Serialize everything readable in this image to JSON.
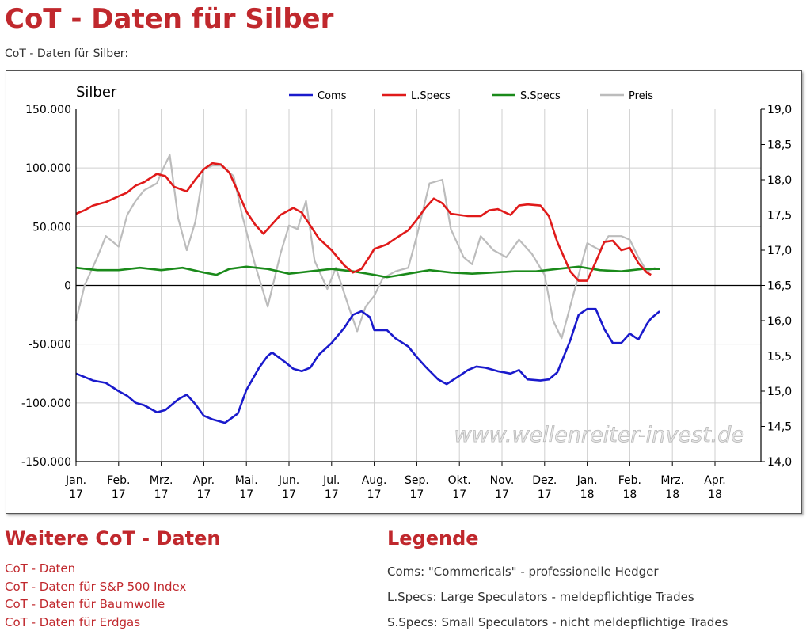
{
  "page": {
    "title": "CoT - Daten für Silber",
    "subtitle": "CoT - Daten für Silber:"
  },
  "chart_data": {
    "type": "line",
    "title": "Silber",
    "watermark": "www.wellenreiter-invest.de",
    "legend_position": "top",
    "x_labels": [
      [
        "Jan.",
        "17"
      ],
      [
        "Feb.",
        "17"
      ],
      [
        "Mrz.",
        "17"
      ],
      [
        "Apr.",
        "17"
      ],
      [
        "Mai.",
        "17"
      ],
      [
        "Jun.",
        "17"
      ],
      [
        "Jul.",
        "17"
      ],
      [
        "Aug.",
        "17"
      ],
      [
        "Sep.",
        "17"
      ],
      [
        "Okt.",
        "17"
      ],
      [
        "Nov.",
        "17"
      ],
      [
        "Dez.",
        "17"
      ],
      [
        "Jan.",
        "18"
      ],
      [
        "Feb.",
        "18"
      ],
      [
        "Mrz.",
        "18"
      ],
      [
        "Apr.",
        "18"
      ]
    ],
    "y_left": {
      "min": -150000,
      "max": 150000,
      "ticks": [
        150000,
        100000,
        50000,
        0,
        -50000,
        -100000,
        -150000
      ],
      "tick_labels": [
        "150.000",
        "100.000",
        "50.000",
        "0",
        "-50.000",
        "-100.000",
        "-150.000"
      ]
    },
    "y_right": {
      "min": 14.0,
      "max": 19.0,
      "ticks": [
        19.0,
        18.5,
        18.0,
        17.5,
        17.0,
        16.5,
        16.0,
        15.5,
        15.0,
        14.5,
        14.0
      ],
      "tick_labels": [
        "19,0",
        "18,5",
        "18,0",
        "17,5",
        "17,0",
        "16,5",
        "16,0",
        "15,5",
        "15,0",
        "14,5",
        "14,0"
      ]
    },
    "series": [
      {
        "name": "Coms",
        "color": "#1a1acc",
        "axis": "left",
        "points": [
          [
            0,
            -75000
          ],
          [
            0.2,
            -78000
          ],
          [
            0.4,
            -81000
          ],
          [
            0.7,
            -83000
          ],
          [
            1.0,
            -90000
          ],
          [
            1.2,
            -94000
          ],
          [
            1.4,
            -100000
          ],
          [
            1.6,
            -102000
          ],
          [
            1.9,
            -108000
          ],
          [
            2.1,
            -106000
          ],
          [
            2.4,
            -97000
          ],
          [
            2.6,
            -93000
          ],
          [
            2.8,
            -101000
          ],
          [
            3.0,
            -111000
          ],
          [
            3.2,
            -114000
          ],
          [
            3.5,
            -117000
          ],
          [
            3.8,
            -109000
          ],
          [
            4.0,
            -89000
          ],
          [
            4.3,
            -70000
          ],
          [
            4.5,
            -60000
          ],
          [
            4.6,
            -57000
          ],
          [
            4.9,
            -65000
          ],
          [
            5.1,
            -71000
          ],
          [
            5.3,
            -73000
          ],
          [
            5.5,
            -70000
          ],
          [
            5.7,
            -59000
          ],
          [
            6.0,
            -49000
          ],
          [
            6.3,
            -36000
          ],
          [
            6.5,
            -25000
          ],
          [
            6.7,
            -22000
          ],
          [
            6.9,
            -27000
          ],
          [
            7.0,
            -38000
          ],
          [
            7.3,
            -38000
          ],
          [
            7.5,
            -45000
          ],
          [
            7.8,
            -52000
          ],
          [
            8.0,
            -61000
          ],
          [
            8.2,
            -69000
          ],
          [
            8.5,
            -80000
          ],
          [
            8.7,
            -84000
          ],
          [
            9.0,
            -77000
          ],
          [
            9.2,
            -72000
          ],
          [
            9.4,
            -69000
          ],
          [
            9.6,
            -70000
          ],
          [
            9.9,
            -73000
          ],
          [
            10.2,
            -75000
          ],
          [
            10.4,
            -72000
          ],
          [
            10.6,
            -80000
          ],
          [
            10.9,
            -81000
          ],
          [
            11.1,
            -80000
          ],
          [
            11.3,
            -74000
          ],
          [
            11.6,
            -47000
          ],
          [
            11.8,
            -25000
          ],
          [
            12.0,
            -20000
          ],
          [
            12.2,
            -20000
          ],
          [
            12.4,
            -37000
          ],
          [
            12.6,
            -49000
          ],
          [
            12.8,
            -49000
          ],
          [
            13.0,
            -41000
          ],
          [
            13.2,
            -46000
          ],
          [
            13.4,
            -33000
          ],
          [
            13.5,
            -28000
          ],
          [
            13.7,
            -22000
          ]
        ]
      },
      {
        "name": "L.Specs",
        "color": "#e01a1a",
        "axis": "left",
        "points": [
          [
            0,
            61000
          ],
          [
            0.2,
            64000
          ],
          [
            0.4,
            68000
          ],
          [
            0.7,
            71000
          ],
          [
            1.0,
            76000
          ],
          [
            1.2,
            79000
          ],
          [
            1.4,
            85000
          ],
          [
            1.6,
            88000
          ],
          [
            1.9,
            95000
          ],
          [
            2.1,
            93000
          ],
          [
            2.3,
            84000
          ],
          [
            2.6,
            80000
          ],
          [
            2.8,
            90000
          ],
          [
            3.0,
            99000
          ],
          [
            3.2,
            104000
          ],
          [
            3.4,
            103000
          ],
          [
            3.6,
            96000
          ],
          [
            3.8,
            80000
          ],
          [
            4.0,
            63000
          ],
          [
            4.2,
            52000
          ],
          [
            4.4,
            44000
          ],
          [
            4.6,
            52000
          ],
          [
            4.8,
            60000
          ],
          [
            5.1,
            66000
          ],
          [
            5.3,
            62000
          ],
          [
            5.5,
            51000
          ],
          [
            5.7,
            40000
          ],
          [
            6.0,
            30000
          ],
          [
            6.3,
            17000
          ],
          [
            6.5,
            11000
          ],
          [
            6.7,
            14000
          ],
          [
            6.9,
            25000
          ],
          [
            7.0,
            31000
          ],
          [
            7.3,
            35000
          ],
          [
            7.5,
            40000
          ],
          [
            7.8,
            47000
          ],
          [
            8.0,
            56000
          ],
          [
            8.2,
            66000
          ],
          [
            8.4,
            74000
          ],
          [
            8.6,
            70000
          ],
          [
            8.8,
            61000
          ],
          [
            9.0,
            60000
          ],
          [
            9.2,
            59000
          ],
          [
            9.5,
            59000
          ],
          [
            9.7,
            64000
          ],
          [
            9.9,
            65000
          ],
          [
            10.2,
            60000
          ],
          [
            10.4,
            68000
          ],
          [
            10.6,
            69000
          ],
          [
            10.9,
            68000
          ],
          [
            11.1,
            59000
          ],
          [
            11.3,
            37000
          ],
          [
            11.6,
            12000
          ],
          [
            11.8,
            4000
          ],
          [
            12.0,
            4000
          ],
          [
            12.2,
            20000
          ],
          [
            12.4,
            37000
          ],
          [
            12.6,
            38000
          ],
          [
            12.8,
            30000
          ],
          [
            13.0,
            32000
          ],
          [
            13.2,
            19000
          ],
          [
            13.4,
            11000
          ],
          [
            13.5,
            9000
          ]
        ]
      },
      {
        "name": "S.Specs",
        "color": "#1a8a1a",
        "axis": "left",
        "points": [
          [
            0,
            15000
          ],
          [
            0.5,
            13000
          ],
          [
            1.0,
            13000
          ],
          [
            1.5,
            15000
          ],
          [
            2.0,
            13000
          ],
          [
            2.5,
            15000
          ],
          [
            3.0,
            11000
          ],
          [
            3.3,
            9000
          ],
          [
            3.6,
            14000
          ],
          [
            4.0,
            16000
          ],
          [
            4.5,
            14000
          ],
          [
            5.0,
            10000
          ],
          [
            5.5,
            12000
          ],
          [
            6.0,
            14000
          ],
          [
            6.5,
            12000
          ],
          [
            7.0,
            9000
          ],
          [
            7.3,
            7000
          ],
          [
            7.8,
            10000
          ],
          [
            8.3,
            13000
          ],
          [
            8.8,
            11000
          ],
          [
            9.3,
            10000
          ],
          [
            9.8,
            11000
          ],
          [
            10.3,
            12000
          ],
          [
            10.8,
            12000
          ],
          [
            11.3,
            14000
          ],
          [
            11.8,
            16000
          ],
          [
            12.3,
            13000
          ],
          [
            12.8,
            12000
          ],
          [
            13.3,
            14000
          ],
          [
            13.7,
            14000
          ]
        ]
      },
      {
        "name": "Preis",
        "color": "#bcbcbc",
        "axis": "right",
        "points": [
          [
            0,
            16.0
          ],
          [
            0.2,
            16.5
          ],
          [
            0.5,
            16.9
          ],
          [
            0.7,
            17.2
          ],
          [
            1.0,
            17.05
          ],
          [
            1.2,
            17.5
          ],
          [
            1.4,
            17.7
          ],
          [
            1.6,
            17.85
          ],
          [
            1.9,
            17.95
          ],
          [
            2.0,
            18.1
          ],
          [
            2.2,
            18.35
          ],
          [
            2.4,
            17.45
          ],
          [
            2.6,
            17.0
          ],
          [
            2.8,
            17.4
          ],
          [
            3.0,
            18.15
          ],
          [
            3.2,
            18.2
          ],
          [
            3.4,
            18.2
          ],
          [
            3.7,
            18.05
          ],
          [
            3.9,
            17.5
          ],
          [
            4.2,
            16.8
          ],
          [
            4.5,
            16.2
          ],
          [
            4.8,
            16.95
          ],
          [
            5.0,
            17.35
          ],
          [
            5.2,
            17.3
          ],
          [
            5.4,
            17.7
          ],
          [
            5.6,
            16.85
          ],
          [
            5.9,
            16.45
          ],
          [
            6.1,
            16.75
          ],
          [
            6.4,
            16.2
          ],
          [
            6.6,
            15.85
          ],
          [
            6.8,
            16.2
          ],
          [
            7.0,
            16.35
          ],
          [
            7.2,
            16.6
          ],
          [
            7.5,
            16.7
          ],
          [
            7.8,
            16.75
          ],
          [
            8.0,
            17.2
          ],
          [
            8.3,
            17.95
          ],
          [
            8.6,
            18.0
          ],
          [
            8.8,
            17.3
          ],
          [
            9.1,
            16.9
          ],
          [
            9.3,
            16.8
          ],
          [
            9.5,
            17.2
          ],
          [
            9.8,
            17.0
          ],
          [
            10.1,
            16.9
          ],
          [
            10.4,
            17.15
          ],
          [
            10.7,
            16.95
          ],
          [
            11.0,
            16.65
          ],
          [
            11.2,
            16.0
          ],
          [
            11.4,
            15.75
          ],
          [
            11.6,
            16.2
          ],
          [
            11.8,
            16.65
          ],
          [
            12.0,
            17.1
          ],
          [
            12.3,
            17.0
          ],
          [
            12.5,
            17.2
          ],
          [
            12.8,
            17.2
          ],
          [
            13.0,
            17.15
          ],
          [
            13.2,
            16.9
          ],
          [
            13.4,
            16.7
          ],
          [
            13.6,
            16.75
          ]
        ]
      }
    ]
  },
  "more_data": {
    "title": "Weitere CoT - Daten",
    "links": [
      "CoT - Daten",
      "CoT - Daten für S&P 500 Index",
      "CoT - Daten für Baumwolle",
      "CoT - Daten für Erdgas"
    ]
  },
  "legend": {
    "title": "Legende",
    "items": [
      "Coms: \"Commericals\" - professionelle Hedger",
      "L.Specs: Large Speculators - meldepflichtige Trades",
      "S.Specs: Small Speculators - nicht meldepflichtige Trades"
    ]
  }
}
